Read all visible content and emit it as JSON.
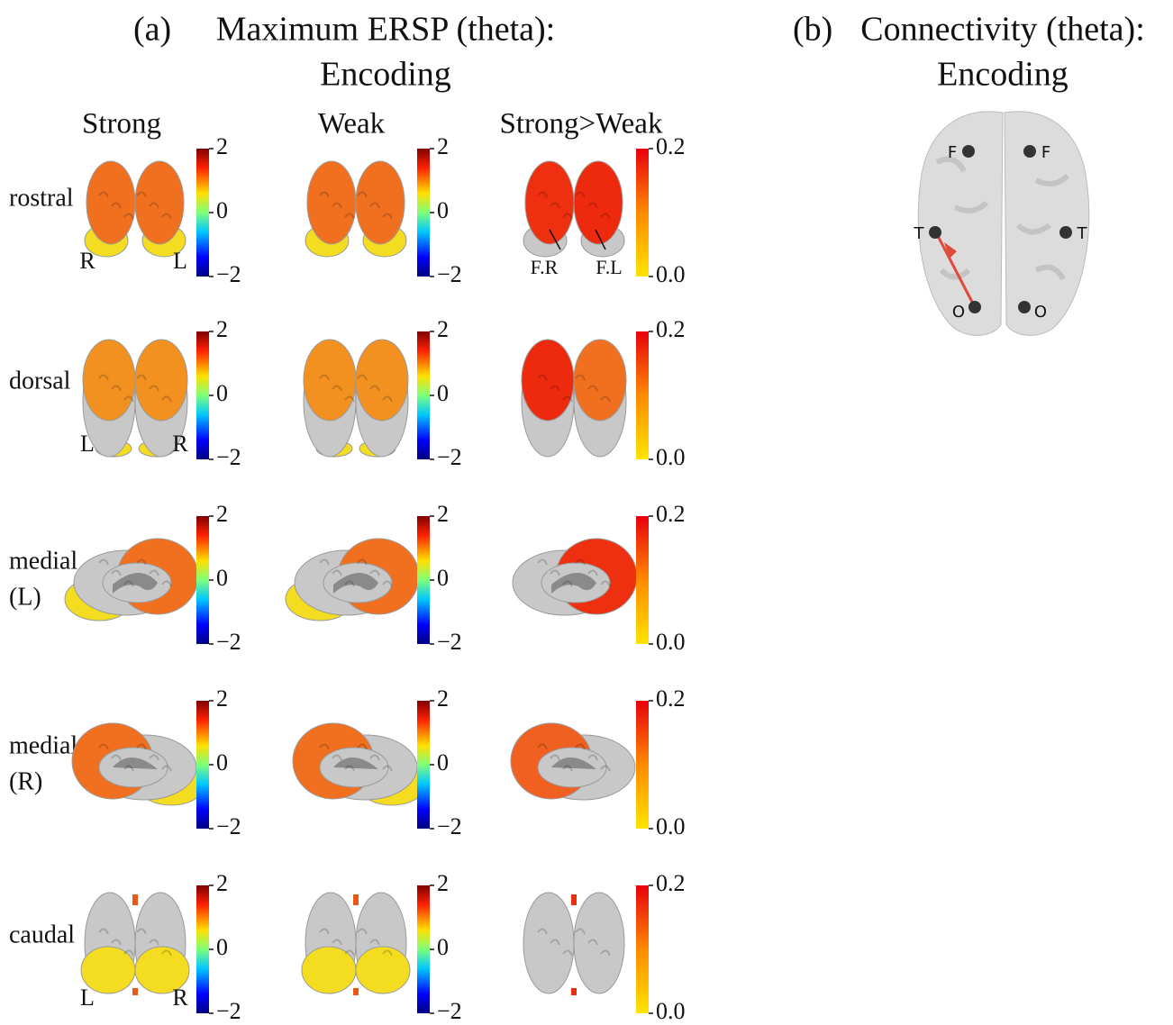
{
  "panel_a": {
    "label": "(a)",
    "title": [
      "Maximum ERSP (theta):",
      "Encoding"
    ],
    "columns": [
      "Strong",
      "Weak",
      "Strong>Weak"
    ],
    "rows": [
      {
        "label": [
          "rostral"
        ],
        "markers": [
          "R",
          "L"
        ],
        "diff_markers": [
          "F.R",
          "F.L"
        ]
      },
      {
        "label": [
          "dorsal"
        ],
        "markers": [
          "L",
          "R"
        ]
      },
      {
        "label": [
          "medial",
          "(L)"
        ]
      },
      {
        "label": [
          "medial",
          "(R)"
        ]
      },
      {
        "label": [
          "caudal"
        ],
        "markers": [
          "L",
          "R"
        ]
      }
    ],
    "colorbars": {
      "ersp": [
        "2",
        "0",
        "−2"
      ],
      "difference": [
        "0.2",
        "0.0"
      ]
    }
  },
  "panel_b": {
    "label": "(b)",
    "title": [
      "Connectivity (theta):",
      "Encoding"
    ],
    "nodes": [
      "F",
      "F",
      "T",
      "T",
      "O",
      "O"
    ]
  }
}
